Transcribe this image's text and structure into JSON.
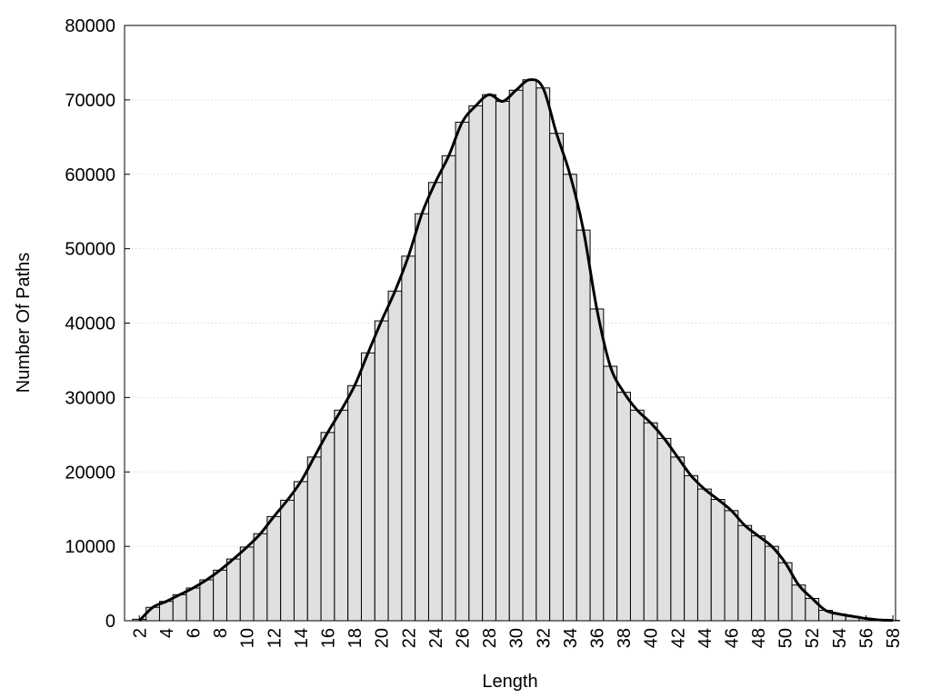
{
  "chart_data": {
    "type": "bar",
    "x_label": "Length",
    "y_label": "Number Of Paths",
    "x": [
      2,
      3,
      4,
      5,
      6,
      7,
      8,
      9,
      10,
      11,
      12,
      13,
      14,
      15,
      16,
      17,
      18,
      19,
      20,
      21,
      22,
      23,
      24,
      25,
      26,
      27,
      28,
      29,
      30,
      31,
      32,
      33,
      34,
      35,
      36,
      37,
      38,
      39,
      40,
      41,
      42,
      43,
      44,
      45,
      46,
      47,
      48,
      49,
      50,
      51,
      52,
      53,
      54,
      55,
      56,
      57,
      58
    ],
    "series": [
      {
        "type": "bar",
        "color": "#e0e0e0",
        "values": [
          200,
          1800,
          2600,
          3500,
          4400,
          5500,
          6800,
          8300,
          9900,
          11700,
          14000,
          16200,
          18700,
          22000,
          25300,
          28300,
          31600,
          36000,
          40300,
          44300,
          49000,
          54700,
          58900,
          62500,
          67000,
          69200,
          70700,
          69800,
          71300,
          72700,
          71600,
          65500,
          60000,
          52500,
          41900,
          34200,
          30700,
          28300,
          26600,
          24500,
          22000,
          19500,
          17700,
          16300,
          14800,
          12800,
          11400,
          10000,
          7800,
          4800,
          3000,
          1400,
          900,
          600,
          300,
          100,
          50
        ]
      },
      {
        "type": "line",
        "color": "#000000",
        "values": [
          0,
          1800,
          2600,
          3500,
          4400,
          5500,
          6800,
          8300,
          9900,
          11700,
          14000,
          16200,
          18700,
          22000,
          25300,
          28300,
          31600,
          36000,
          40300,
          44300,
          49000,
          54700,
          58900,
          62500,
          67000,
          69200,
          70700,
          69800,
          71300,
          72700,
          71600,
          65500,
          60000,
          52500,
          41900,
          34200,
          30700,
          28300,
          26600,
          24500,
          22000,
          19500,
          17700,
          16300,
          14800,
          12800,
          11400,
          10000,
          7800,
          4800,
          3000,
          1400,
          900,
          600,
          300,
          100,
          50
        ]
      }
    ],
    "xlim": [
      0.9,
      58.2
    ],
    "xticks": [
      2,
      4,
      6,
      8,
      10,
      12,
      14,
      16,
      18,
      20,
      22,
      24,
      26,
      28,
      30,
      32,
      34,
      36,
      38,
      40,
      42,
      44,
      46,
      48,
      50,
      52,
      54,
      56,
      58
    ],
    "ylim": [
      0,
      80000
    ],
    "yticks": [
      0,
      10000,
      20000,
      30000,
      40000,
      50000,
      60000,
      70000,
      80000
    ],
    "grid": true
  }
}
